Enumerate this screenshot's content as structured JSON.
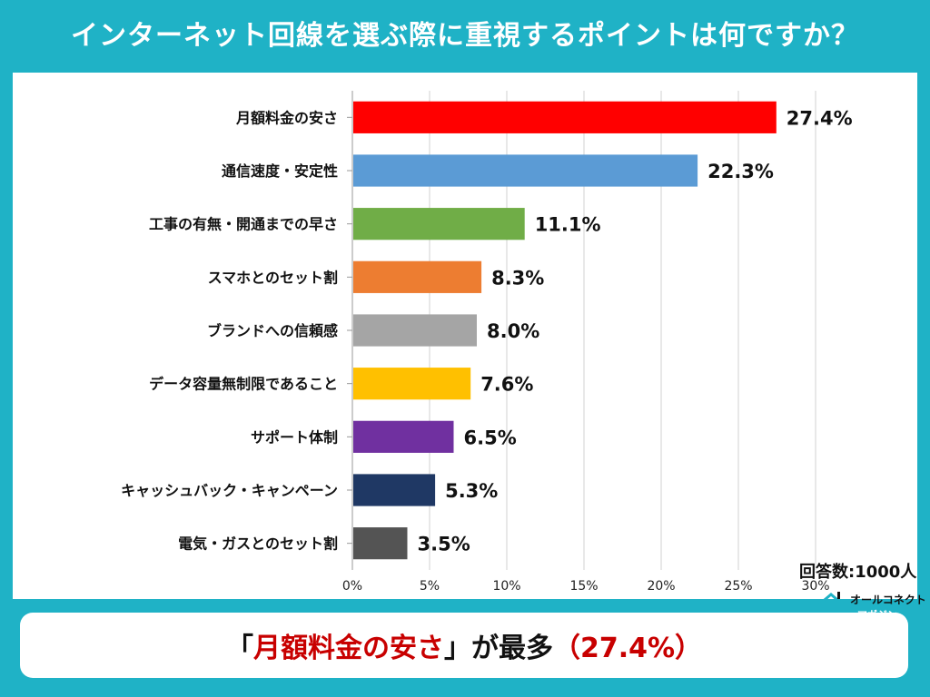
{
  "title": "インターネット回線を選ぶ際に重視するポイントは何ですか？",
  "respondents": "回答数:1000人",
  "logo": {
    "name": "オールコネクト",
    "badge": "マガジン"
  },
  "summary": {
    "open": "「",
    "highlight": "月額料金の安さ",
    "close": "」",
    "middle": "が最多",
    "value": "（27.4%）"
  },
  "chart_data": {
    "type": "bar",
    "orientation": "horizontal",
    "categories": [
      "月額料金の安さ",
      "通信速度・安定性",
      "工事の有無・開通までの早さ",
      "スマホとのセット割",
      "ブランドへの信頼感",
      "データ容量無制限であること",
      "サポート体制",
      "キャッシュバック・キャンペーン",
      "電気・ガスとのセット割"
    ],
    "values": [
      27.4,
      22.3,
      11.1,
      8.3,
      8.0,
      7.6,
      6.5,
      5.3,
      3.5
    ],
    "value_labels": [
      "27.4%",
      "22.3%",
      "11.1%",
      "8.3%",
      "8.0%",
      "7.6%",
      "6.5%",
      "5.3%",
      "3.5%"
    ],
    "colors": [
      "#ff0000",
      "#5b9bd5",
      "#70ad47",
      "#ed7d31",
      "#a5a5a5",
      "#ffc000",
      "#7030a0",
      "#1f3864",
      "#545454"
    ],
    "x_ticks": [
      "0%",
      "5%",
      "10%",
      "15%",
      "20%",
      "25%",
      "30%"
    ],
    "xlim": [
      0,
      30
    ],
    "grid": true,
    "title": "",
    "xlabel": "",
    "ylabel": ""
  }
}
